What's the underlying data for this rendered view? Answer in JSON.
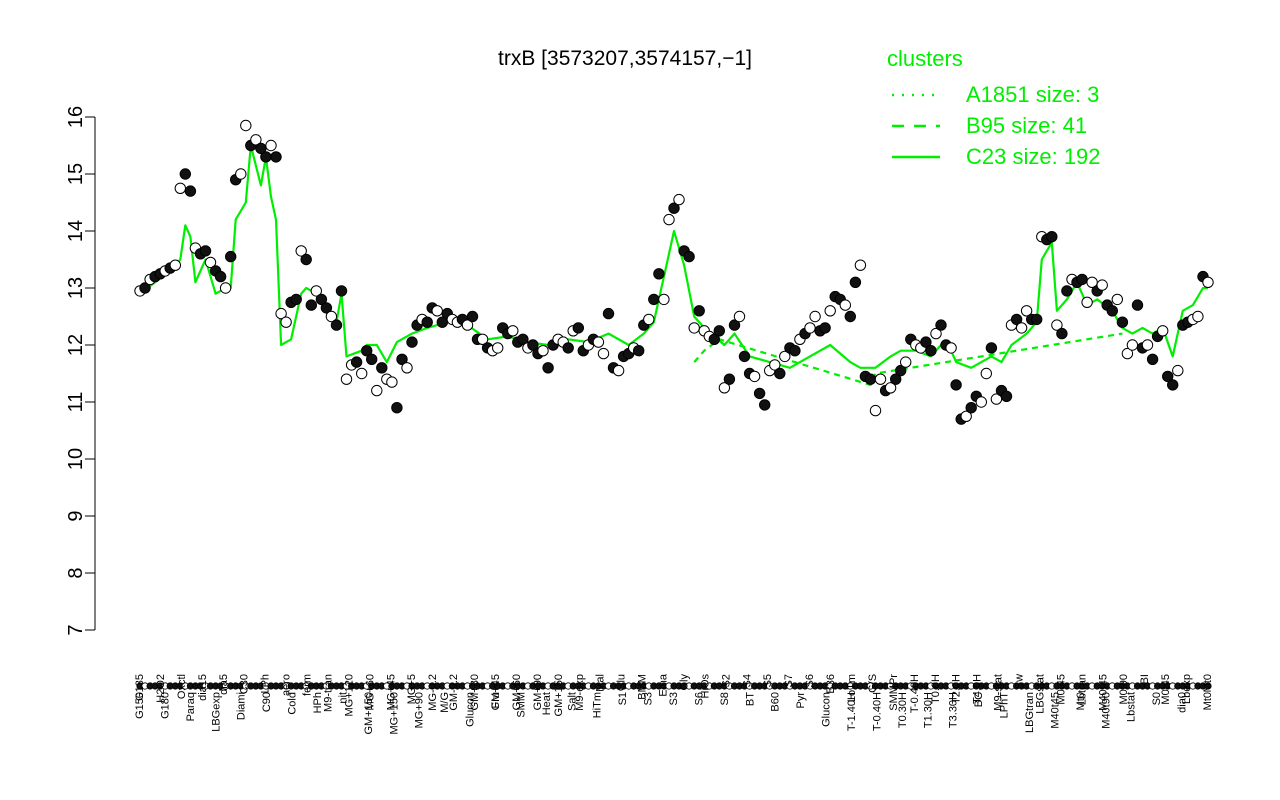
{
  "chart_data": {
    "type": "line",
    "title": "trxB [3573207,3574157,−1]",
    "xlabel": "",
    "ylabel": "",
    "ylim": [
      7,
      16
    ],
    "yticks": [
      7,
      8,
      9,
      10,
      11,
      12,
      13,
      14,
      15,
      16
    ],
    "grid": false,
    "legend": {
      "title": "clusters",
      "placement": "top-right",
      "entries": [
        {
          "label": "A1851 size: 3",
          "style": "dotted"
        },
        {
          "label": "B95 size: 41",
          "style": "dashed"
        },
        {
          "label": "C23 size: 192",
          "style": "solid"
        }
      ]
    },
    "colors": {
      "series": "#00ee00",
      "point_fill_dark": "#111111",
      "point_fill_light": "#ffffff"
    },
    "x_labels_upper": [
      "G135",
      "H2O2",
      "Oxctl",
      "dia15",
      "dia5",
      "C30",
      "LPh",
      "aero",
      "ferm",
      "M9-tran",
      "MG+120",
      "MG+60",
      "MG+45",
      "MG+5",
      "MG-0.2",
      "GM-0.2",
      "GM+30",
      "GM+45",
      "GM+60",
      "GM+90",
      "GM+150",
      "M9-exp",
      "Mal",
      "Glu",
      "BMM",
      "Etha",
      "Gly",
      "HiOs",
      "S2",
      "S4",
      "S5",
      "S7",
      "S6",
      "B36",
      "LoTm",
      "G/S",
      "SMMPr",
      "T-0.40H",
      "T0.0H",
      "T2.0H",
      "T4.0H",
      "M9-stat",
      "Sw",
      "LBGstat",
      "M0t45",
      "Lbtran",
      "M40t45",
      "M0t90",
      "BI",
      "M0t45",
      "Lbexp",
      "Mt0"
    ],
    "x_labels_lower": [
      "G150",
      "G180",
      "Paraq",
      "LBGexp",
      "Diami",
      "C90",
      "Cold",
      "HPh",
      "nit",
      "GM+150",
      "MG+150",
      "MG+90",
      "M/G",
      "Glucon",
      "Fru",
      "SMM",
      "Heat",
      "Salt",
      "HiTm",
      "S1",
      "S3",
      "S3",
      "S6",
      "S8",
      "BT",
      "B60",
      "Pyr",
      "Glucon",
      "T-1.40H",
      "T-0.40H",
      "T0.30H",
      "T1.30H",
      "T3.30H",
      "BC",
      "LPhT",
      "LBGtran",
      "M40t45",
      "Mt0",
      "M40t90",
      "Lbstat",
      "S0",
      "dia0",
      "Mt0"
    ],
    "points": [
      {
        "x": 1,
        "y": 12.95
      },
      {
        "x": 2,
        "y": 13.0
      },
      {
        "x": 3,
        "y": 13.15
      },
      {
        "x": 4,
        "y": 13.2
      },
      {
        "x": 5,
        "y": 13.25
      },
      {
        "x": 6,
        "y": 13.3
      },
      {
        "x": 7,
        "y": 13.35
      },
      {
        "x": 8,
        "y": 13.4
      },
      {
        "x": 9,
        "y": 14.75
      },
      {
        "x": 10,
        "y": 15.0
      },
      {
        "x": 11,
        "y": 14.7
      },
      {
        "x": 12,
        "y": 13.7
      },
      {
        "x": 13,
        "y": 13.6
      },
      {
        "x": 14,
        "y": 13.65
      },
      {
        "x": 15,
        "y": 13.45
      },
      {
        "x": 16,
        "y": 13.3
      },
      {
        "x": 17,
        "y": 13.2
      },
      {
        "x": 18,
        "y": 13.0
      },
      {
        "x": 19,
        "y": 13.55
      },
      {
        "x": 20,
        "y": 14.9
      },
      {
        "x": 21,
        "y": 15.0
      },
      {
        "x": 22,
        "y": 15.85
      },
      {
        "x": 23,
        "y": 15.5
      },
      {
        "x": 24,
        "y": 15.6
      },
      {
        "x": 25,
        "y": 15.45
      },
      {
        "x": 26,
        "y": 15.3
      },
      {
        "x": 27,
        "y": 15.5
      },
      {
        "x": 28,
        "y": 15.3
      },
      {
        "x": 29,
        "y": 12.55
      },
      {
        "x": 30,
        "y": 12.4
      },
      {
        "x": 31,
        "y": 12.75
      },
      {
        "x": 32,
        "y": 12.8
      },
      {
        "x": 33,
        "y": 13.65
      },
      {
        "x": 34,
        "y": 13.5
      },
      {
        "x": 35,
        "y": 12.7
      },
      {
        "x": 36,
        "y": 12.95
      },
      {
        "x": 37,
        "y": 12.8
      },
      {
        "x": 38,
        "y": 12.65
      },
      {
        "x": 39,
        "y": 12.5
      },
      {
        "x": 40,
        "y": 12.35
      },
      {
        "x": 41,
        "y": 12.95
      },
      {
        "x": 42,
        "y": 11.4
      },
      {
        "x": 43,
        "y": 11.65
      },
      {
        "x": 44,
        "y": 11.7
      },
      {
        "x": 45,
        "y": 11.5
      },
      {
        "x": 46,
        "y": 11.9
      },
      {
        "x": 47,
        "y": 11.75
      },
      {
        "x": 48,
        "y": 11.2
      },
      {
        "x": 49,
        "y": 11.6
      },
      {
        "x": 50,
        "y": 11.4
      },
      {
        "x": 51,
        "y": 11.35
      },
      {
        "x": 52,
        "y": 10.9
      },
      {
        "x": 53,
        "y": 11.75
      },
      {
        "x": 54,
        "y": 11.6
      },
      {
        "x": 55,
        "y": 12.05
      },
      {
        "x": 56,
        "y": 12.35
      },
      {
        "x": 57,
        "y": 12.45
      },
      {
        "x": 58,
        "y": 12.4
      },
      {
        "x": 59,
        "y": 12.65
      },
      {
        "x": 60,
        "y": 12.6
      },
      {
        "x": 61,
        "y": 12.4
      },
      {
        "x": 62,
        "y": 12.55
      },
      {
        "x": 63,
        "y": 12.45
      },
      {
        "x": 64,
        "y": 12.4
      },
      {
        "x": 65,
        "y": 12.45
      },
      {
        "x": 66,
        "y": 12.35
      },
      {
        "x": 67,
        "y": 12.5
      },
      {
        "x": 68,
        "y": 12.1
      },
      {
        "x": 69,
        "y": 12.1
      },
      {
        "x": 70,
        "y": 11.95
      },
      {
        "x": 71,
        "y": 11.9
      },
      {
        "x": 72,
        "y": 11.95
      },
      {
        "x": 73,
        "y": 12.3
      },
      {
        "x": 74,
        "y": 12.2
      },
      {
        "x": 75,
        "y": 12.25
      },
      {
        "x": 76,
        "y": 12.05
      },
      {
        "x": 77,
        "y": 12.1
      },
      {
        "x": 78,
        "y": 11.95
      },
      {
        "x": 79,
        "y": 12.0
      },
      {
        "x": 80,
        "y": 11.85
      },
      {
        "x": 81,
        "y": 11.9
      },
      {
        "x": 82,
        "y": 11.6
      },
      {
        "x": 83,
        "y": 12.0
      },
      {
        "x": 84,
        "y": 12.1
      },
      {
        "x": 85,
        "y": 12.05
      },
      {
        "x": 86,
        "y": 11.95
      },
      {
        "x": 87,
        "y": 12.25
      },
      {
        "x": 88,
        "y": 12.3
      },
      {
        "x": 89,
        "y": 11.9
      },
      {
        "x": 90,
        "y": 12.0
      },
      {
        "x": 91,
        "y": 12.1
      },
      {
        "x": 92,
        "y": 12.05
      },
      {
        "x": 93,
        "y": 11.85
      },
      {
        "x": 94,
        "y": 12.55
      },
      {
        "x": 95,
        "y": 11.6
      },
      {
        "x": 96,
        "y": 11.55
      },
      {
        "x": 97,
        "y": 11.8
      },
      {
        "x": 98,
        "y": 11.85
      },
      {
        "x": 99,
        "y": 11.95
      },
      {
        "x": 100,
        "y": 11.9
      },
      {
        "x": 101,
        "y": 12.35
      },
      {
        "x": 102,
        "y": 12.45
      },
      {
        "x": 103,
        "y": 12.8
      },
      {
        "x": 104,
        "y": 13.25
      },
      {
        "x": 105,
        "y": 12.8
      },
      {
        "x": 106,
        "y": 14.2
      },
      {
        "x": 107,
        "y": 14.4
      },
      {
        "x": 108,
        "y": 14.55
      },
      {
        "x": 109,
        "y": 13.65
      },
      {
        "x": 110,
        "y": 13.55
      },
      {
        "x": 111,
        "y": 12.3
      },
      {
        "x": 112,
        "y": 12.6
      },
      {
        "x": 113,
        "y": 12.25
      },
      {
        "x": 114,
        "y": 12.15
      },
      {
        "x": 115,
        "y": 12.1
      },
      {
        "x": 116,
        "y": 12.25
      },
      {
        "x": 117,
        "y": 11.25
      },
      {
        "x": 118,
        "y": 11.4
      },
      {
        "x": 119,
        "y": 12.35
      },
      {
        "x": 120,
        "y": 12.5
      },
      {
        "x": 121,
        "y": 11.8
      },
      {
        "x": 122,
        "y": 11.5
      },
      {
        "x": 123,
        "y": 11.45
      },
      {
        "x": 124,
        "y": 11.15
      },
      {
        "x": 125,
        "y": 10.95
      },
      {
        "x": 126,
        "y": 11.55
      },
      {
        "x": 127,
        "y": 11.65
      },
      {
        "x": 128,
        "y": 11.5
      },
      {
        "x": 129,
        "y": 11.8
      },
      {
        "x": 130,
        "y": 11.95
      },
      {
        "x": 131,
        "y": 11.9
      },
      {
        "x": 132,
        "y": 12.1
      },
      {
        "x": 133,
        "y": 12.2
      },
      {
        "x": 134,
        "y": 12.3
      },
      {
        "x": 135,
        "y": 12.5
      },
      {
        "x": 136,
        "y": 12.25
      },
      {
        "x": 137,
        "y": 12.3
      },
      {
        "x": 138,
        "y": 12.6
      },
      {
        "x": 139,
        "y": 12.85
      },
      {
        "x": 140,
        "y": 12.8
      },
      {
        "x": 141,
        "y": 12.7
      },
      {
        "x": 142,
        "y": 12.5
      },
      {
        "x": 143,
        "y": 13.1
      },
      {
        "x": 144,
        "y": 13.4
      },
      {
        "x": 145,
        "y": 11.45
      },
      {
        "x": 146,
        "y": 11.4
      },
      {
        "x": 147,
        "y": 10.85
      },
      {
        "x": 148,
        "y": 11.4
      },
      {
        "x": 149,
        "y": 11.2
      },
      {
        "x": 150,
        "y": 11.25
      },
      {
        "x": 151,
        "y": 11.4
      },
      {
        "x": 152,
        "y": 11.55
      },
      {
        "x": 153,
        "y": 11.7
      },
      {
        "x": 154,
        "y": 12.1
      },
      {
        "x": 155,
        "y": 12.0
      },
      {
        "x": 156,
        "y": 11.95
      },
      {
        "x": 157,
        "y": 12.05
      },
      {
        "x": 158,
        "y": 11.9
      },
      {
        "x": 159,
        "y": 12.2
      },
      {
        "x": 160,
        "y": 12.35
      },
      {
        "x": 161,
        "y": 12.0
      },
      {
        "x": 162,
        "y": 11.95
      },
      {
        "x": 163,
        "y": 11.3
      },
      {
        "x": 164,
        "y": 10.7
      },
      {
        "x": 165,
        "y": 10.75
      },
      {
        "x": 166,
        "y": 10.9
      },
      {
        "x": 167,
        "y": 11.1
      },
      {
        "x": 168,
        "y": 11.0
      },
      {
        "x": 169,
        "y": 11.5
      },
      {
        "x": 170,
        "y": 11.95
      },
      {
        "x": 171,
        "y": 11.05
      },
      {
        "x": 172,
        "y": 11.2
      },
      {
        "x": 173,
        "y": 11.1
      },
      {
        "x": 174,
        "y": 12.35
      },
      {
        "x": 175,
        "y": 12.45
      },
      {
        "x": 176,
        "y": 12.3
      },
      {
        "x": 177,
        "y": 12.6
      },
      {
        "x": 178,
        "y": 12.45
      },
      {
        "x": 179,
        "y": 12.45
      },
      {
        "x": 180,
        "y": 13.9
      },
      {
        "x": 181,
        "y": 13.85
      },
      {
        "x": 182,
        "y": 13.9
      },
      {
        "x": 183,
        "y": 12.35
      },
      {
        "x": 184,
        "y": 12.2
      },
      {
        "x": 185,
        "y": 12.95
      },
      {
        "x": 186,
        "y": 13.15
      },
      {
        "x": 187,
        "y": 13.1
      },
      {
        "x": 188,
        "y": 13.15
      },
      {
        "x": 189,
        "y": 12.75
      },
      {
        "x": 190,
        "y": 13.1
      },
      {
        "x": 191,
        "y": 12.95
      },
      {
        "x": 192,
        "y": 13.05
      },
      {
        "x": 193,
        "y": 12.7
      },
      {
        "x": 194,
        "y": 12.6
      },
      {
        "x": 195,
        "y": 12.8
      },
      {
        "x": 196,
        "y": 12.4
      },
      {
        "x": 197,
        "y": 11.85
      },
      {
        "x": 198,
        "y": 12.0
      },
      {
        "x": 199,
        "y": 12.7
      },
      {
        "x": 200,
        "y": 11.95
      },
      {
        "x": 201,
        "y": 12.0
      },
      {
        "x": 202,
        "y": 11.75
      },
      {
        "x": 203,
        "y": 12.15
      },
      {
        "x": 204,
        "y": 12.25
      },
      {
        "x": 205,
        "y": 11.45
      },
      {
        "x": 206,
        "y": 11.3
      },
      {
        "x": 207,
        "y": 11.55
      },
      {
        "x": 208,
        "y": 12.35
      },
      {
        "x": 209,
        "y": 12.4
      },
      {
        "x": 210,
        "y": 12.45
      },
      {
        "x": 211,
        "y": 12.5
      },
      {
        "x": 212,
        "y": 13.2
      },
      {
        "x": 213,
        "y": 13.1
      }
    ],
    "series": [
      {
        "name": "C23 size: 192",
        "style": "solid",
        "values": [
          [
            1,
            12.9
          ],
          [
            4,
            13.1
          ],
          [
            8,
            13.4
          ],
          [
            9,
            13.5
          ],
          [
            10,
            14.1
          ],
          [
            11,
            13.9
          ],
          [
            12,
            13.1
          ],
          [
            14,
            13.5
          ],
          [
            16,
            12.9
          ],
          [
            18,
            13.0
          ],
          [
            19,
            13.0
          ],
          [
            20,
            14.2
          ],
          [
            22,
            14.5
          ],
          [
            23,
            15.5
          ],
          [
            25,
            14.8
          ],
          [
            26,
            15.3
          ],
          [
            27,
            14.6
          ],
          [
            28,
            14.2
          ],
          [
            29,
            12.0
          ],
          [
            31,
            12.1
          ],
          [
            33,
            12.9
          ],
          [
            34,
            13.0
          ],
          [
            36,
            12.9
          ],
          [
            38,
            12.7
          ],
          [
            40,
            12.4
          ],
          [
            41,
            12.9
          ],
          [
            42,
            11.8
          ],
          [
            45,
            11.9
          ],
          [
            46,
            12.0
          ],
          [
            48,
            12.0
          ],
          [
            50,
            11.7
          ],
          [
            52,
            12.05
          ],
          [
            55,
            12.2
          ],
          [
            58,
            12.3
          ],
          [
            62,
            12.4
          ],
          [
            66,
            12.35
          ],
          [
            70,
            12.1
          ],
          [
            74,
            12.15
          ],
          [
            78,
            12.05
          ],
          [
            82,
            12.0
          ],
          [
            86,
            12.1
          ],
          [
            90,
            12.05
          ],
          [
            94,
            12.2
          ],
          [
            98,
            12.0
          ],
          [
            101,
            12.2
          ],
          [
            103,
            12.4
          ],
          [
            106,
            13.6
          ],
          [
            107,
            14.0
          ],
          [
            109,
            13.4
          ],
          [
            111,
            12.5
          ],
          [
            113,
            12.3
          ],
          [
            117,
            12.0
          ],
          [
            119,
            12.2
          ],
          [
            122,
            11.8
          ],
          [
            126,
            11.7
          ],
          [
            130,
            11.6
          ],
          [
            134,
            11.8
          ],
          [
            138,
            12.0
          ],
          [
            142,
            11.7
          ],
          [
            144,
            11.6
          ],
          [
            147,
            11.6
          ],
          [
            150,
            11.8
          ],
          [
            152,
            11.9
          ],
          [
            155,
            11.9
          ],
          [
            158,
            11.8
          ],
          [
            160,
            12.0
          ],
          [
            162,
            11.9
          ],
          [
            163,
            11.7
          ],
          [
            166,
            11.6
          ],
          [
            170,
            11.8
          ],
          [
            172,
            11.7
          ],
          [
            174,
            12.0
          ],
          [
            177,
            12.2
          ],
          [
            179,
            12.4
          ],
          [
            180,
            13.5
          ],
          [
            182,
            13.8
          ],
          [
            183,
            12.6
          ],
          [
            185,
            12.8
          ],
          [
            187,
            13.1
          ],
          [
            189,
            12.7
          ],
          [
            191,
            12.8
          ],
          [
            194,
            12.6
          ],
          [
            196,
            12.3
          ],
          [
            198,
            12.2
          ],
          [
            200,
            12.3
          ],
          [
            202,
            12.2
          ],
          [
            204,
            12.3
          ],
          [
            206,
            11.8
          ],
          [
            208,
            12.6
          ],
          [
            210,
            12.7
          ],
          [
            212,
            13.0
          ],
          [
            213,
            13.0
          ]
        ]
      },
      {
        "name": "B95 size: 41",
        "style": "dashed",
        "values": [
          [
            111,
            11.7
          ],
          [
            113,
            11.9
          ],
          [
            116,
            12.1
          ],
          [
            146,
            11.3
          ],
          [
            147,
            11.5
          ],
          [
            196,
            12.2
          ]
        ]
      }
    ]
  }
}
